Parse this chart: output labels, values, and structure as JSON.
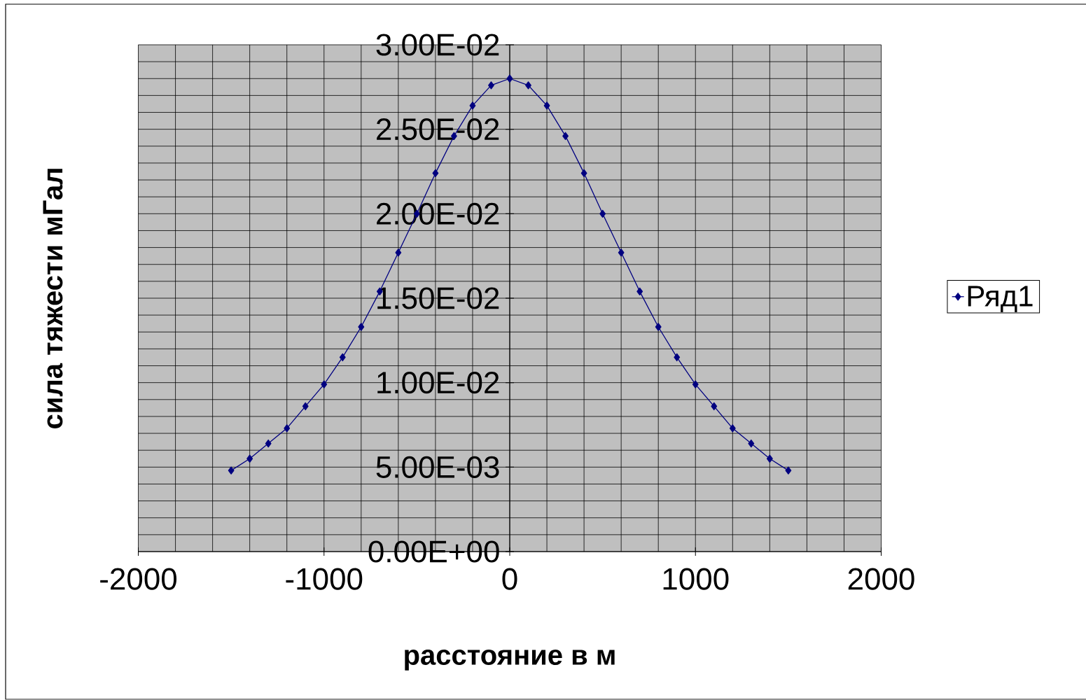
{
  "chart_data": {
    "type": "line",
    "xlabel": "расстояние в м",
    "ylabel": "сила тяжести мГал",
    "x": [
      -1500,
      -1400,
      -1300,
      -1200,
      -1100,
      -1000,
      -900,
      -800,
      -700,
      -600,
      -500,
      -400,
      -300,
      -200,
      -100,
      0,
      100,
      200,
      300,
      400,
      500,
      600,
      700,
      800,
      900,
      1000,
      1100,
      1200,
      1300,
      1400,
      1500
    ],
    "series": [
      {
        "name": "Ряд1",
        "color": "#000080",
        "values": [
          0.0048,
          0.0055,
          0.0064,
          0.0073,
          0.0086,
          0.0099,
          0.0115,
          0.0133,
          0.0154,
          0.0177,
          0.02,
          0.0224,
          0.0246,
          0.0264,
          0.0276,
          0.028,
          0.0276,
          0.0264,
          0.0246,
          0.0224,
          0.02,
          0.0177,
          0.0154,
          0.0133,
          0.0115,
          0.0099,
          0.0086,
          0.0073,
          0.0064,
          0.0055,
          0.0048
        ]
      }
    ],
    "xlim": [
      -2000,
      2000
    ],
    "xticks": [
      -2000,
      -1000,
      0,
      1000,
      2000
    ],
    "ylim": [
      0,
      0.03
    ],
    "yticks": [
      {
        "value": 0,
        "label": "0.00E+00"
      },
      {
        "value": 0.005,
        "label": "5.00E-03"
      },
      {
        "value": 0.01,
        "label": "1.00E-02"
      },
      {
        "value": 0.015,
        "label": "1.50E-02"
      },
      {
        "value": 0.02,
        "label": "2.00E-02"
      },
      {
        "value": 0.025,
        "label": "2.50E-02"
      },
      {
        "value": 0.03,
        "label": "3.00E-02"
      }
    ],
    "grid": true,
    "legend": "right",
    "marker": "diamond",
    "line_style": "solid"
  }
}
